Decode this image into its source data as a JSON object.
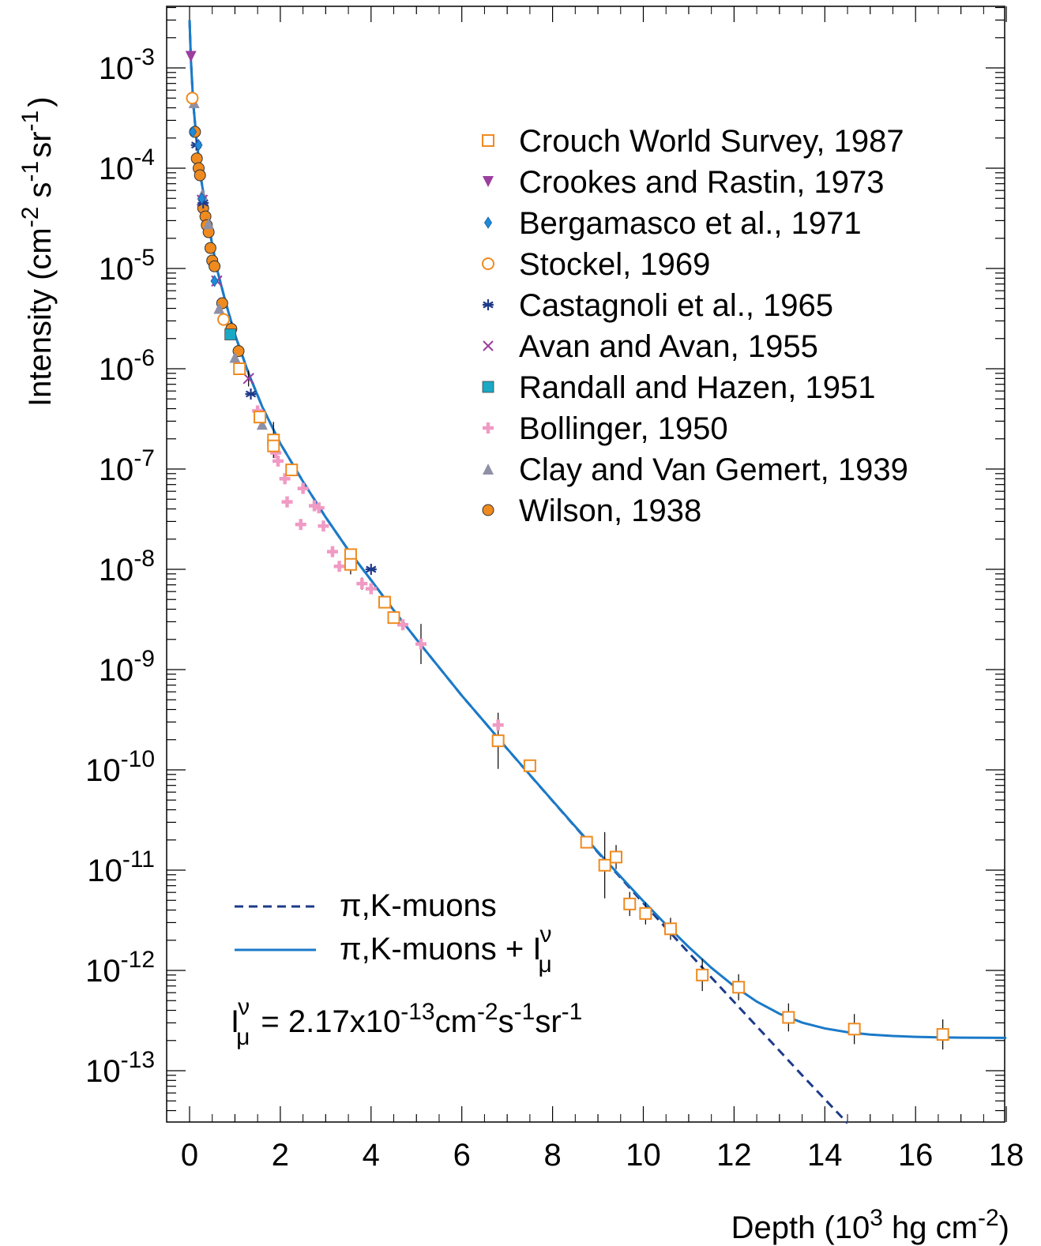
{
  "chart_data": {
    "type": "scatter",
    "xlabel": "Depth (10",
    "xlabel_sup": "3",
    "xlabel_unit": " hg cm",
    "xlabel_unit_sup": "-2",
    "xlabel_close": ")",
    "ylabel": "Intensity  (cm",
    "ylabel_sup1": "-2",
    "ylabel_s": " s",
    "ylabel_sup2": "-1",
    "ylabel_sr": "sr",
    "ylabel_sup3": "-1",
    "ylabel_close": ")",
    "xlim": [
      -0.5,
      18
    ],
    "ylim_log10": [
      -13.5,
      -2.4
    ],
    "y_scale": "log",
    "grid": false,
    "legend_position": "top-right",
    "x_ticks": [
      "0",
      "2",
      "4",
      "6",
      "8",
      "10",
      "12",
      "14",
      "16",
      "18"
    ],
    "y_ticks": [
      {
        "base": "10",
        "exp": "-3"
      },
      {
        "base": "10",
        "exp": "-4"
      },
      {
        "base": "10",
        "exp": "-5"
      },
      {
        "base": "10",
        "exp": "-6"
      },
      {
        "base": "10",
        "exp": "-7"
      },
      {
        "base": "10",
        "exp": "-8"
      },
      {
        "base": "10",
        "exp": "-9"
      },
      {
        "base": "10",
        "exp": "-10"
      },
      {
        "base": "10",
        "exp": "-11"
      },
      {
        "base": "10",
        "exp": "-12"
      },
      {
        "base": "10",
        "exp": "-13"
      }
    ],
    "series": [
      {
        "name": "Crouch World Survey, 1987",
        "marker": "open-square",
        "color": "#ef8a1f",
        "points": [
          [
            1.1,
            1e-06
          ],
          [
            1.55,
            3.3e-07
          ],
          [
            1.85,
            1.95e-07
          ],
          [
            1.85,
            1.7e-07
          ],
          [
            2.25,
            9.8e-08
          ],
          [
            3.55,
            1.4e-08
          ],
          [
            3.55,
            1.12e-08
          ],
          [
            4.3,
            4.7e-09
          ],
          [
            4.5,
            3.3e-09
          ],
          [
            6.8,
            1.95e-10
          ],
          [
            7.5,
            1.1e-10
          ],
          [
            8.75,
            1.9e-11
          ],
          [
            9.15,
            1.12e-11
          ],
          [
            9.4,
            1.35e-11
          ],
          [
            9.7,
            4.6e-12
          ],
          [
            10.05,
            3.7e-12
          ],
          [
            10.6,
            2.6e-12
          ],
          [
            11.3,
            9e-13
          ],
          [
            12.1,
            6.8e-13
          ],
          [
            13.2,
            3.4e-13
          ],
          [
            14.65,
            2.6e-13
          ],
          [
            16.6,
            2.3e-13
          ]
        ]
      },
      {
        "name": "Crookes and Rastin, 1973",
        "marker": "down-triangle",
        "color": "#9b3e9e",
        "points": [
          [
            0.03,
            0.0013
          ]
        ]
      },
      {
        "name": "Bergamasco et al., 1971",
        "marker": "diamond",
        "color": "#1e8ad8",
        "points": [
          [
            0.07,
            0.00023
          ],
          [
            0.2,
            0.00017
          ],
          [
            0.27,
            5e-05
          ],
          [
            0.55,
            7.5e-06
          ],
          [
            4.25,
            4.7e-09
          ]
        ]
      },
      {
        "name": "Stockel, 1969",
        "marker": "open-circle",
        "color": "#ef8a1f",
        "points": [
          [
            0.06,
            0.0005
          ],
          [
            0.75,
            3.1e-06
          ]
        ]
      },
      {
        "name": "Castagnoli et al., 1965",
        "marker": "asterisk",
        "color": "#1e3b8a",
        "points": [
          [
            0.15,
            0.00017
          ],
          [
            0.3,
            4.5e-05
          ],
          [
            1.35,
            5.6e-07
          ],
          [
            4.0,
            1e-08
          ]
        ]
      },
      {
        "name": "Avan and Avan, 1955",
        "marker": "cross",
        "color": "#9b3e9e",
        "points": [
          [
            0.28,
            4.8e-05
          ],
          [
            0.6,
            7.5e-06
          ],
          [
            1.3,
            8e-07
          ]
        ]
      },
      {
        "name": "Randall and Hazen, 1951",
        "marker": "filled-square",
        "color": "#19a9c4",
        "points": [
          [
            0.9,
            2.2e-06
          ]
        ]
      },
      {
        "name": "Bollinger, 1950",
        "marker": "plus",
        "color": "#f09ac4",
        "points": [
          [
            1.5,
            3.8e-07
          ],
          [
            1.9,
            1.45e-07
          ],
          [
            1.95,
            1.2e-07
          ],
          [
            2.1,
            8e-08
          ],
          [
            2.15,
            4.7e-08
          ],
          [
            2.45,
            2.8e-08
          ],
          [
            2.5,
            6.4e-08
          ],
          [
            2.75,
            4.3e-08
          ],
          [
            2.85,
            4.1e-08
          ],
          [
            2.95,
            2.7e-08
          ],
          [
            3.15,
            1.5e-08
          ],
          [
            3.3,
            1.07e-08
          ],
          [
            3.8,
            7.2e-09
          ],
          [
            4.0,
            6.4e-09
          ],
          [
            4.7,
            2.8e-09
          ],
          [
            5.1,
            1.8e-09
          ],
          [
            6.8,
            2.8e-10
          ]
        ]
      },
      {
        "name": "Clay and Van Gemert, 1939",
        "marker": "up-triangle",
        "color": "#8e90a6",
        "points": [
          [
            0.1,
            0.00045
          ],
          [
            0.28,
            5.5e-05
          ],
          [
            0.42,
            2.8e-05
          ],
          [
            0.65,
            4e-06
          ],
          [
            1.0,
            1.3e-06
          ],
          [
            1.6,
            2.8e-07
          ]
        ]
      },
      {
        "name": "Wilson, 1938",
        "marker": "filled-circle",
        "color": "#ef8a1f",
        "points": [
          [
            0.12,
            0.00023
          ],
          [
            0.16,
            0.000125
          ],
          [
            0.2,
            0.0001
          ],
          [
            0.23,
            8.5e-05
          ],
          [
            0.3,
            4e-05
          ],
          [
            0.35,
            3.3e-05
          ],
          [
            0.38,
            2.7e-05
          ],
          [
            0.42,
            2.3e-05
          ],
          [
            0.46,
            1.6e-05
          ],
          [
            0.5,
            1.2e-05
          ],
          [
            0.55,
            1.05e-05
          ],
          [
            0.72,
            4.5e-06
          ],
          [
            0.92,
            2.5e-06
          ],
          [
            1.08,
            1.5e-06
          ]
        ]
      }
    ],
    "curves": [
      {
        "name": "π,K-muons",
        "style": "dashed",
        "color": "#1e3b8a"
      },
      {
        "name": "π,K-muons + I",
        "name_sup": "ν",
        "name_sub": "μ",
        "style": "solid",
        "color": "#1a7ac8"
      }
    ],
    "annotation": {
      "prefix": "I",
      "prefix_sup": "ν",
      "prefix_sub": "μ",
      "eq": "= 2.17x10",
      "exp1": "-13",
      "cm": "cm",
      "exp2": "-2",
      "s": "s",
      "exp3": "-1",
      "sr": "sr",
      "exp4": "-1"
    }
  },
  "colors": {
    "axis": "#000000",
    "dashed_curve": "#1e3b8a",
    "solid_curve": "#1a7ac8",
    "error_bar": "#000000"
  }
}
